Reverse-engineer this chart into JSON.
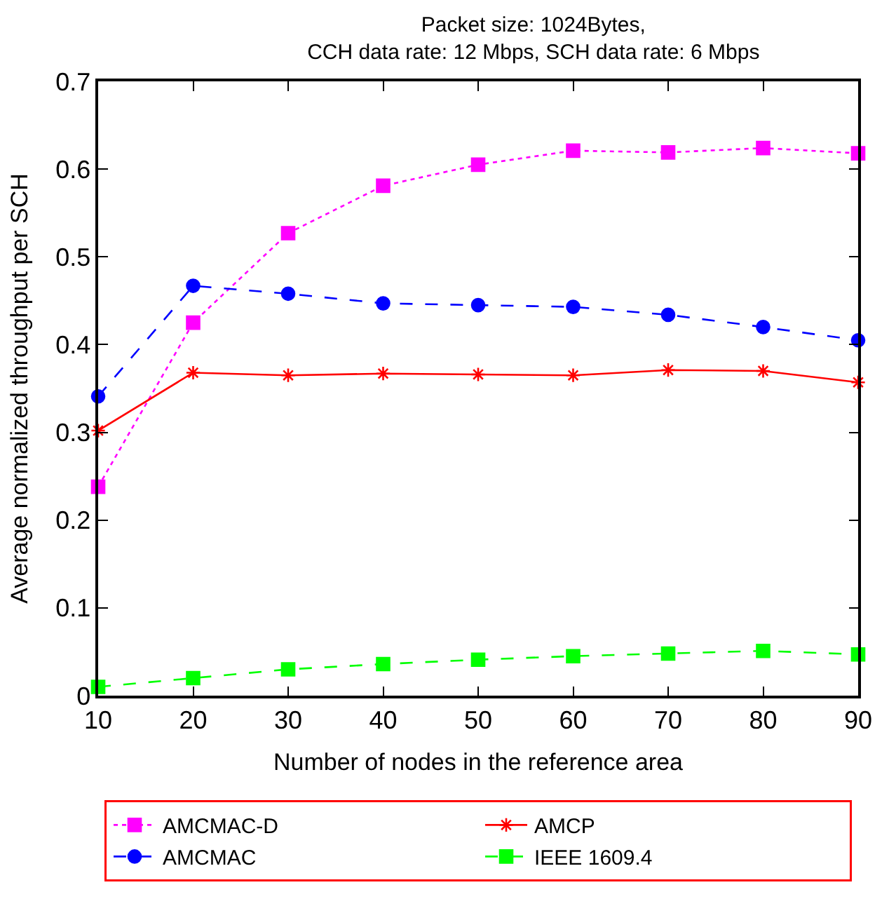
{
  "chart_data": {
    "type": "line",
    "title": "Packet size: 1024Bytes,\nCCH data rate: 12 Mbps, SCH data rate: 6 Mbps",
    "xlabel": "Number of nodes in the reference area",
    "ylabel": "Average normalized throughput per SCH",
    "x": [
      10,
      20,
      30,
      40,
      50,
      60,
      70,
      80,
      90
    ],
    "series": [
      {
        "name": "AMCMAC-D",
        "color": "#ff00ff",
        "marker": "square",
        "line_style": "dotted",
        "values": [
          0.238,
          0.425,
          0.527,
          0.581,
          0.605,
          0.621,
          0.619,
          0.624,
          0.618
        ]
      },
      {
        "name": "AMCP",
        "color": "#ff0000",
        "marker": "cross",
        "line_style": "solid",
        "values": [
          0.302,
          0.368,
          0.365,
          0.367,
          0.366,
          0.365,
          0.371,
          0.37,
          0.357
        ]
      },
      {
        "name": "AMCMAC",
        "color": "#0000ff",
        "marker": "circle",
        "line_style": "dashed",
        "values": [
          0.341,
          0.467,
          0.458,
          0.447,
          0.445,
          0.443,
          0.434,
          0.42,
          0.405
        ]
      },
      {
        "name": "IEEE 1609.4",
        "color": "#00ff00",
        "marker": "square",
        "line_style": "dashed",
        "values": [
          0.01,
          0.02,
          0.03,
          0.036,
          0.041,
          0.045,
          0.048,
          0.051,
          0.047
        ]
      }
    ],
    "xlim": [
      10,
      90
    ],
    "xticks": [
      10,
      20,
      30,
      40,
      50,
      60,
      70,
      80,
      90
    ],
    "ylim": [
      0,
      0.7
    ],
    "yticks": [
      0,
      0.1,
      0.2,
      0.3,
      0.4,
      0.5,
      0.6,
      0.7
    ],
    "legend": "bottom"
  }
}
